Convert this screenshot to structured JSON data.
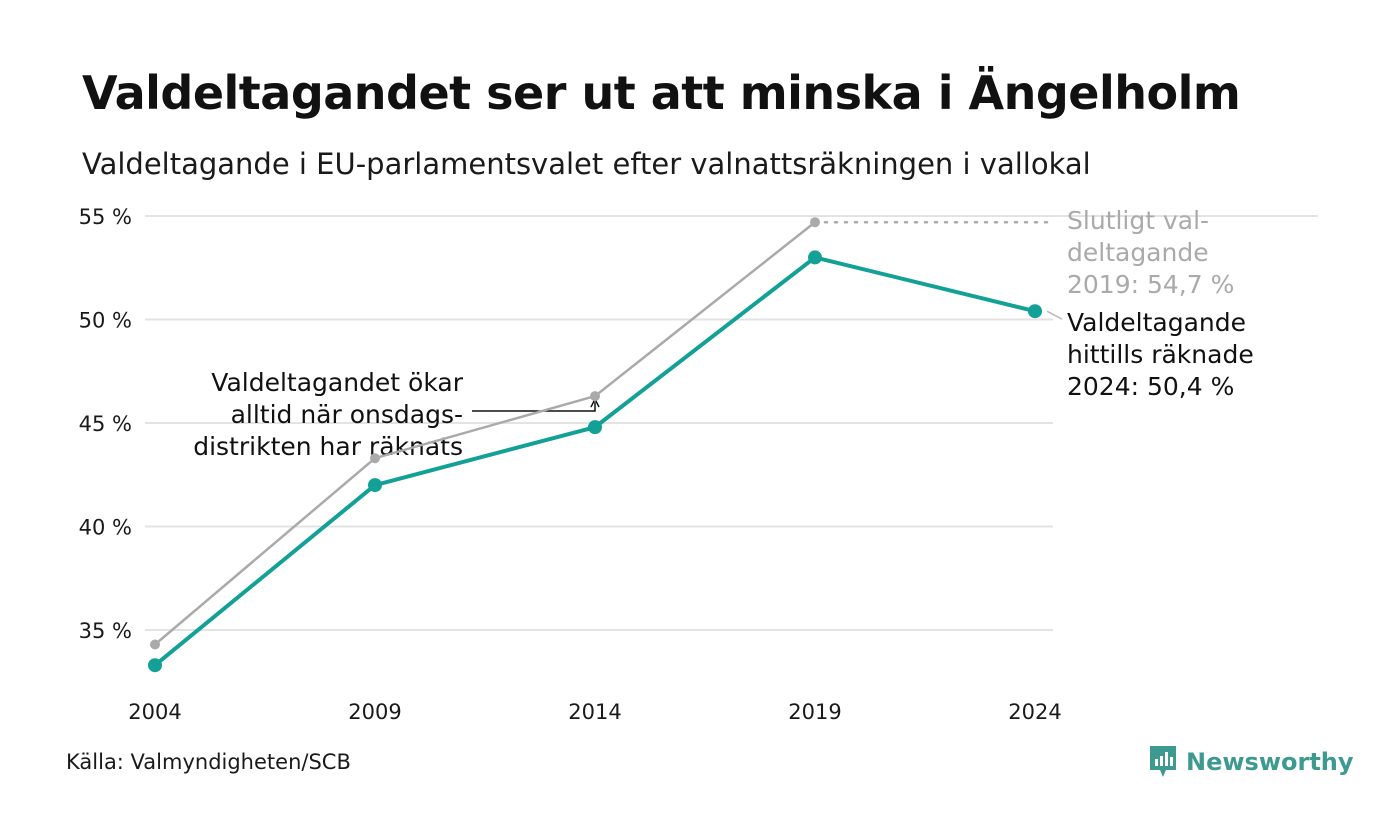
{
  "title": "Valdeltagandet ser ut att minska i Ängelholm",
  "subtitle": "Valdeltagande i EU-parlamentsvalet efter valnattsräkningen i vallokal",
  "source": "Källa: Valmyndigheten/SCB",
  "brand": {
    "name": "Newsworthy",
    "icon": "newsworthy-logo-icon",
    "color": "#3e9a91"
  },
  "chart_data": {
    "type": "line",
    "x": [
      "2004",
      "2009",
      "2014",
      "2019",
      "2024"
    ],
    "ylim": [
      32,
      55
    ],
    "yticks": [
      35,
      40,
      45,
      50,
      55
    ],
    "ytick_labels": [
      "35 %",
      "40 %",
      "45 %",
      "50 %",
      "55 %"
    ],
    "grid": true,
    "series": [
      {
        "key": "final",
        "values": [
          34.3,
          43.3,
          46.3,
          54.7,
          null
        ],
        "color": "#aaaaaa"
      },
      {
        "key": "counted",
        "values": [
          33.3,
          42.0,
          44.8,
          53.0,
          50.4
        ],
        "color": "#13a096"
      }
    ],
    "annotations": {
      "final_2019": [
        "Slutligt val-",
        "deltagande",
        "2019: 54,7 %"
      ],
      "counted_2024": [
        "Valdeltagande",
        "hittills räknade",
        "2024: 50,4 %"
      ],
      "wednesday": [
        "Valdeltagandet ökar",
        "alltid när onsdags-",
        "distrikten har räknats"
      ]
    }
  }
}
